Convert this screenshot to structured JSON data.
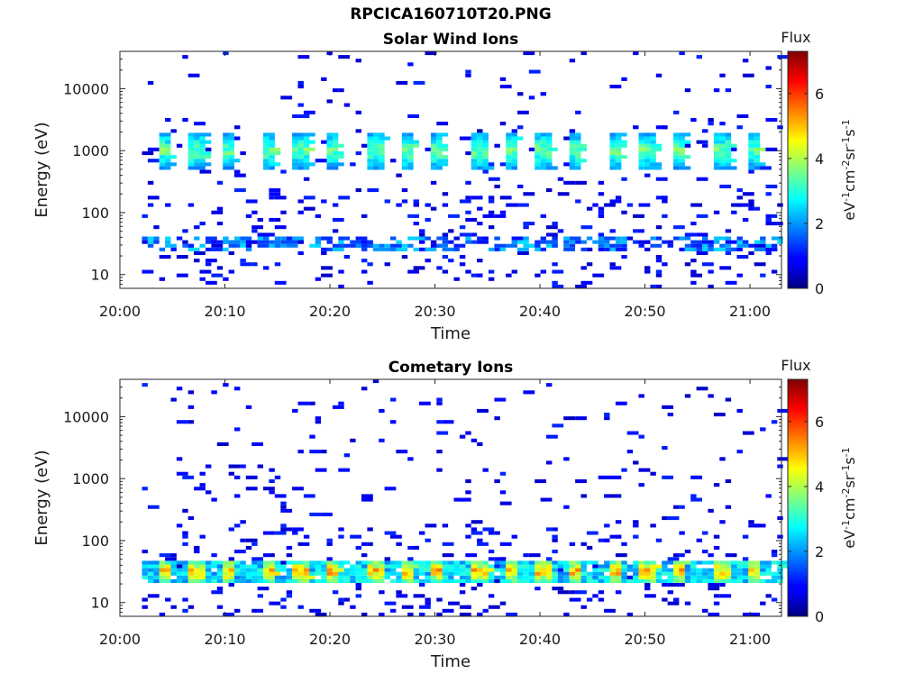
{
  "figure": {
    "title": "RPCICA160710T20.PNG"
  },
  "chart_data": [
    {
      "type": "heatmap",
      "title": "Solar Wind Ions",
      "xlabel": "Time",
      "ylabel": "Energy (eV)",
      "y_scale": "log",
      "xlim": [
        "20:00",
        "21:03"
      ],
      "ylim": [
        6,
        40000
      ],
      "x_ticks": [
        "20:00",
        "20:10",
        "20:20",
        "20:30",
        "20:40",
        "20:50",
        "21:00"
      ],
      "y_ticks": [
        "10",
        "100",
        "1000",
        "10000"
      ],
      "colorbar": {
        "label": "Flux",
        "units": "eV-1cm-2sr-1s-1",
        "range": [
          0,
          7.3
        ],
        "ticks": [
          "0",
          "2",
          "4",
          "6"
        ],
        "colormap": "jet"
      },
      "peak_times": [
        "20:04",
        "20:07",
        "20:10",
        "20:14",
        "20:17",
        "20:20",
        "20:24",
        "20:27",
        "20:30",
        "20:34",
        "20:37",
        "20:40",
        "20:43",
        "20:47",
        "20:50",
        "20:53",
        "20:57",
        "21:00"
      ],
      "beam": {
        "energy_range": [
          500,
          2000
        ],
        "peak_flux": 3.5
      },
      "low_energy_band": {
        "energy_range": [
          25,
          40
        ],
        "peak_flux": 2.5
      },
      "background_flux": 0.8
    },
    {
      "type": "heatmap",
      "title": "Cometary Ions",
      "xlabel": "Time",
      "ylabel": "Energy (eV)",
      "y_scale": "log",
      "xlim": [
        "20:00",
        "21:03"
      ],
      "ylim": [
        6,
        40000
      ],
      "x_ticks": [
        "20:00",
        "20:10",
        "20:20",
        "20:30",
        "20:40",
        "20:50",
        "21:00"
      ],
      "y_ticks": [
        "10",
        "100",
        "1000",
        "10000"
      ],
      "colorbar": {
        "label": "Flux",
        "units": "eV-1cm-2sr-1s-1",
        "range": [
          0,
          7.3
        ],
        "ticks": [
          "0",
          "2",
          "4",
          "6"
        ],
        "colormap": "jet"
      },
      "peak_times": [
        "20:04",
        "20:07",
        "20:10",
        "20:14",
        "20:17",
        "20:20",
        "20:24",
        "20:27",
        "20:30",
        "20:34",
        "20:37",
        "20:40",
        "20:43",
        "20:47",
        "20:50",
        "20:53",
        "20:57",
        "21:00"
      ],
      "beam": {
        "energy_range": [
          20,
          50
        ],
        "peak_flux": 5.2
      },
      "background_flux": 0.8
    }
  ]
}
